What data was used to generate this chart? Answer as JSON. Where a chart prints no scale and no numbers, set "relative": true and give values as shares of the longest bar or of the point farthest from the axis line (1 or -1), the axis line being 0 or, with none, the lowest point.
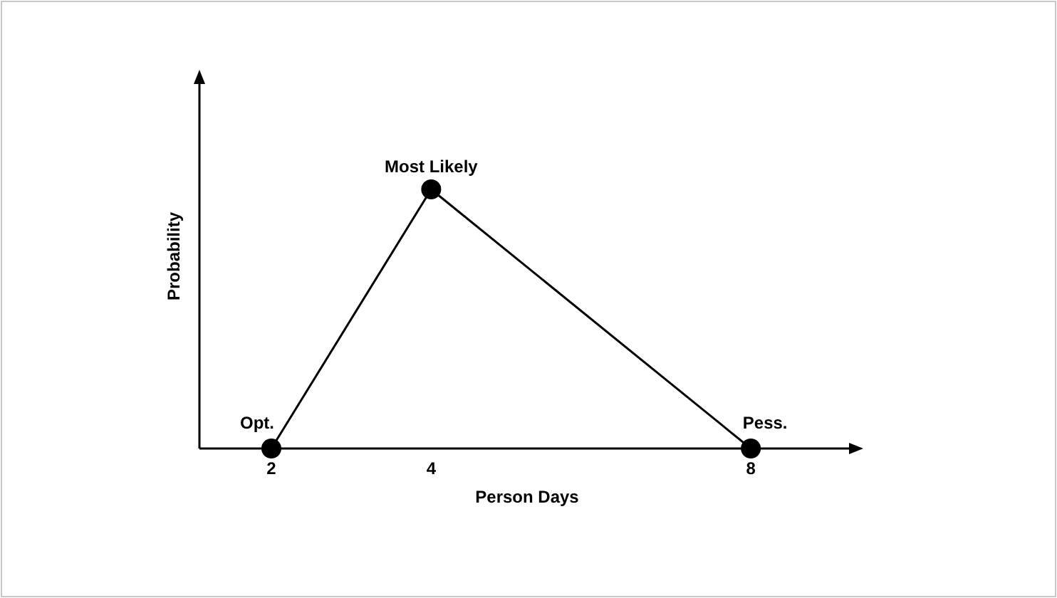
{
  "chart_data": {
    "type": "line",
    "relative": true,
    "xlabel": "Person Days",
    "ylabel": "Probability",
    "x": [
      2,
      4,
      8
    ],
    "xlim": [
      1.1,
      9.3
    ],
    "xticks": [
      2,
      4,
      8
    ],
    "series": [
      {
        "color": "#000000",
        "values": [
          0,
          1,
          0
        ]
      }
    ],
    "marker": "circle",
    "line_style": "solid",
    "grid": false,
    "annotations": [
      {
        "text": "Opt.",
        "x": 2,
        "y": 0
      },
      {
        "text": "Most Likely",
        "x": 4,
        "y": 1
      },
      {
        "text": "Pess.",
        "x": 8,
        "y": 0
      }
    ]
  }
}
